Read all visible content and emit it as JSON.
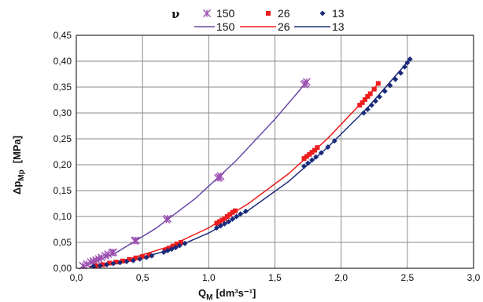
{
  "chart_data": {
    "type": "scatter",
    "xlabel_main": "Q",
    "xlabel_sub": "M",
    "xlabel_unit": "[dm³s⁻¹]",
    "ylabel_main": "Δp",
    "ylabel_sub": "Mp",
    "ylabel_unit": "[MPa]",
    "xlim": [
      0,
      3.0
    ],
    "ylim": [
      0,
      0.45
    ],
    "x_ticks": [
      "0,0",
      "0,5",
      "1,0",
      "1,5",
      "2,0",
      "2,5",
      "3,0"
    ],
    "y_ticks": [
      "0,00",
      "0,05",
      "0,10",
      "0,15",
      "0,20",
      "0,25",
      "0,30",
      "0,35",
      "0,40",
      "0,45"
    ],
    "grid": true,
    "legend_title": "ν",
    "legend_position": "top",
    "series": [
      {
        "name": "150",
        "color": "#9b4fb0",
        "line_color": "#6b4aa8",
        "marker": "asterisk",
        "points": [
          [
            0.05,
            0.005
          ],
          [
            0.08,
            0.008
          ],
          [
            0.11,
            0.012
          ],
          [
            0.13,
            0.014
          ],
          [
            0.15,
            0.016
          ],
          [
            0.17,
            0.018
          ],
          [
            0.19,
            0.021
          ],
          [
            0.22,
            0.024
          ],
          [
            0.24,
            0.027
          ],
          [
            0.27,
            0.03
          ],
          [
            0.28,
            0.031
          ],
          [
            0.44,
            0.053
          ],
          [
            0.45,
            0.054
          ],
          [
            0.68,
            0.094
          ],
          [
            0.69,
            0.096
          ],
          [
            1.07,
            0.174
          ],
          [
            1.08,
            0.176
          ],
          [
            1.09,
            0.178
          ],
          [
            1.72,
            0.355
          ],
          [
            1.73,
            0.357
          ],
          [
            1.74,
            0.36
          ]
        ],
        "fit": [
          [
            0.05,
            0.003
          ],
          [
            0.3,
            0.03
          ],
          [
            0.6,
            0.077
          ],
          [
            0.9,
            0.135
          ],
          [
            1.2,
            0.206
          ],
          [
            1.5,
            0.288
          ],
          [
            1.74,
            0.36
          ]
        ]
      },
      {
        "name": "26",
        "color": "#ee1c1c",
        "line_color": "#ee1c1c",
        "marker": "square",
        "points": [
          [
            0.15,
            0.005
          ],
          [
            0.2,
            0.007
          ],
          [
            0.25,
            0.01
          ],
          [
            0.3,
            0.012
          ],
          [
            0.35,
            0.014
          ],
          [
            0.4,
            0.017
          ],
          [
            0.45,
            0.02
          ],
          [
            0.5,
            0.023
          ],
          [
            0.55,
            0.025
          ],
          [
            0.67,
            0.035
          ],
          [
            0.7,
            0.039
          ],
          [
            0.73,
            0.043
          ],
          [
            0.76,
            0.047
          ],
          [
            0.79,
            0.05
          ],
          [
            1.06,
            0.087
          ],
          [
            1.08,
            0.09
          ],
          [
            1.1,
            0.093
          ],
          [
            1.12,
            0.096
          ],
          [
            1.14,
            0.1
          ],
          [
            1.16,
            0.104
          ],
          [
            1.18,
            0.108
          ],
          [
            1.2,
            0.111
          ],
          [
            1.72,
            0.212
          ],
          [
            1.74,
            0.216
          ],
          [
            1.76,
            0.22
          ],
          [
            1.78,
            0.224
          ],
          [
            1.8,
            0.228
          ],
          [
            1.82,
            0.233
          ],
          [
            2.14,
            0.315
          ],
          [
            2.16,
            0.32
          ],
          [
            2.18,
            0.326
          ],
          [
            2.2,
            0.332
          ],
          [
            2.22,
            0.337
          ],
          [
            2.25,
            0.346
          ],
          [
            2.28,
            0.357
          ]
        ],
        "fit": [
          [
            0.1,
            0.003
          ],
          [
            0.4,
            0.018
          ],
          [
            0.7,
            0.042
          ],
          [
            1.0,
            0.078
          ],
          [
            1.3,
            0.125
          ],
          [
            1.6,
            0.182
          ],
          [
            1.9,
            0.251
          ],
          [
            2.2,
            0.332
          ],
          [
            2.28,
            0.357
          ]
        ]
      },
      {
        "name": "13",
        "color": "#1a2a7a",
        "line_color": "#1a2a7a",
        "marker": "diamond",
        "points": [
          [
            0.13,
            0.004
          ],
          [
            0.18,
            0.005
          ],
          [
            0.23,
            0.007
          ],
          [
            0.28,
            0.009
          ],
          [
            0.33,
            0.011
          ],
          [
            0.38,
            0.013
          ],
          [
            0.43,
            0.015
          ],
          [
            0.48,
            0.018
          ],
          [
            0.53,
            0.021
          ],
          [
            0.57,
            0.024
          ],
          [
            0.66,
            0.031
          ],
          [
            0.69,
            0.034
          ],
          [
            0.72,
            0.037
          ],
          [
            0.75,
            0.04
          ],
          [
            0.78,
            0.044
          ],
          [
            0.82,
            0.048
          ],
          [
            1.06,
            0.078
          ],
          [
            1.09,
            0.082
          ],
          [
            1.12,
            0.086
          ],
          [
            1.15,
            0.09
          ],
          [
            1.18,
            0.095
          ],
          [
            1.21,
            0.1
          ],
          [
            1.24,
            0.105
          ],
          [
            1.28,
            0.11
          ],
          [
            1.72,
            0.197
          ],
          [
            1.75,
            0.203
          ],
          [
            1.78,
            0.209
          ],
          [
            1.81,
            0.215
          ],
          [
            1.85,
            0.223
          ],
          [
            1.9,
            0.234
          ],
          [
            1.95,
            0.246
          ],
          [
            2.17,
            0.3
          ],
          [
            2.2,
            0.307
          ],
          [
            2.23,
            0.315
          ],
          [
            2.26,
            0.323
          ],
          [
            2.29,
            0.331
          ],
          [
            2.33,
            0.342
          ],
          [
            2.37,
            0.353
          ],
          [
            2.41,
            0.365
          ],
          [
            2.45,
            0.377
          ],
          [
            2.48,
            0.389
          ],
          [
            2.5,
            0.397
          ],
          [
            2.52,
            0.404
          ]
        ],
        "fit": [
          [
            0.1,
            0.002
          ],
          [
            0.4,
            0.014
          ],
          [
            0.7,
            0.035
          ],
          [
            1.0,
            0.068
          ],
          [
            1.3,
            0.112
          ],
          [
            1.6,
            0.167
          ],
          [
            1.9,
            0.234
          ],
          [
            2.2,
            0.31
          ],
          [
            2.52,
            0.404
          ]
        ]
      }
    ]
  }
}
